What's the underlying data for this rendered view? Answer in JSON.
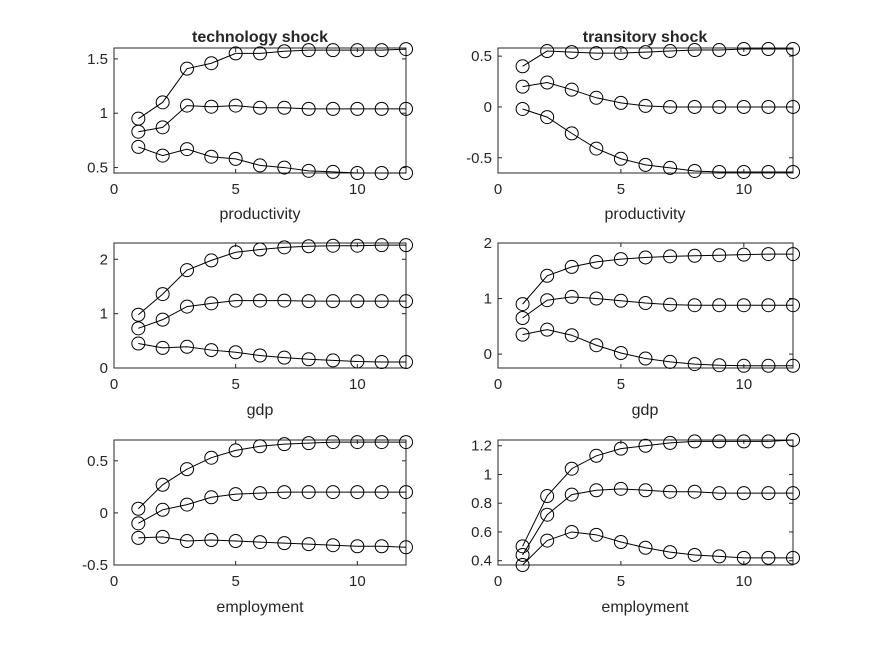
{
  "figure": {
    "background": "#ffffff",
    "line_color": "#000000",
    "axis_color": "#262626"
  },
  "chart_data": [
    {
      "type": "line",
      "panel": "row1-col1",
      "title": "technology shock",
      "xlabel": "productivity",
      "ylabel": "",
      "xlim": [
        0,
        12
      ],
      "ylim": [
        0.45,
        1.6
      ],
      "xticks": [
        0,
        5,
        10
      ],
      "yticks": [
        0.5,
        1,
        1.5
      ],
      "x": [
        1,
        2,
        3,
        4,
        5,
        6,
        7,
        8,
        9,
        10,
        11,
        12
      ],
      "series": [
        {
          "values": [
            0.95,
            1.1,
            1.41,
            1.46,
            1.55,
            1.55,
            1.57,
            1.58,
            1.58,
            1.58,
            1.58,
            1.59
          ],
          "marker": "circle"
        },
        {
          "values": [
            0.83,
            0.87,
            1.07,
            1.06,
            1.07,
            1.05,
            1.05,
            1.04,
            1.04,
            1.04,
            1.04,
            1.04
          ],
          "marker": "circle"
        },
        {
          "values": [
            0.69,
            0.61,
            0.67,
            0.6,
            0.58,
            0.52,
            0.5,
            0.47,
            0.46,
            0.45,
            0.45,
            0.45
          ],
          "marker": "circle"
        }
      ]
    },
    {
      "type": "line",
      "panel": "row1-col2",
      "title": "transitory shock",
      "xlabel": "productivity",
      "ylabel": "",
      "xlim": [
        0,
        12
      ],
      "ylim": [
        -0.65,
        0.58
      ],
      "xticks": [
        0,
        5,
        10
      ],
      "yticks": [
        -0.5,
        0,
        0.5
      ],
      "x": [
        1,
        2,
        3,
        4,
        5,
        6,
        7,
        8,
        9,
        10,
        11,
        12
      ],
      "series": [
        {
          "values": [
            0.4,
            0.55,
            0.54,
            0.53,
            0.53,
            0.54,
            0.55,
            0.56,
            0.56,
            0.57,
            0.57,
            0.57
          ],
          "marker": "circle"
        },
        {
          "values": [
            0.2,
            0.24,
            0.17,
            0.09,
            0.04,
            0.01,
            0.0,
            0.0,
            0.0,
            0.0,
            0.0,
            0.0
          ],
          "marker": "circle"
        },
        {
          "values": [
            -0.02,
            -0.1,
            -0.26,
            -0.41,
            -0.51,
            -0.57,
            -0.6,
            -0.63,
            -0.64,
            -0.64,
            -0.64,
            -0.64
          ],
          "marker": "circle"
        }
      ]
    },
    {
      "type": "line",
      "panel": "row2-col1",
      "title": "",
      "xlabel": "gdp",
      "ylabel": "",
      "xlim": [
        0,
        12
      ],
      "ylim": [
        0,
        2.3
      ],
      "xticks": [
        0,
        5,
        10
      ],
      "yticks": [
        0,
        1,
        2
      ],
      "x": [
        1,
        2,
        3,
        4,
        5,
        6,
        7,
        8,
        9,
        10,
        11,
        12
      ],
      "series": [
        {
          "values": [
            0.98,
            1.36,
            1.8,
            1.98,
            2.13,
            2.18,
            2.22,
            2.24,
            2.25,
            2.25,
            2.26,
            2.26
          ],
          "marker": "circle"
        },
        {
          "values": [
            0.73,
            0.89,
            1.13,
            1.19,
            1.24,
            1.24,
            1.24,
            1.23,
            1.23,
            1.23,
            1.23,
            1.23
          ],
          "marker": "circle"
        },
        {
          "values": [
            0.45,
            0.37,
            0.39,
            0.33,
            0.29,
            0.23,
            0.19,
            0.16,
            0.14,
            0.12,
            0.11,
            0.11
          ],
          "marker": "circle"
        }
      ]
    },
    {
      "type": "line",
      "panel": "row2-col2",
      "title": "",
      "xlabel": "gdp",
      "ylabel": "",
      "xlim": [
        0,
        12
      ],
      "ylim": [
        -0.25,
        2.0
      ],
      "xticks": [
        0,
        5,
        10
      ],
      "yticks": [
        0,
        1,
        2
      ],
      "x": [
        1,
        2,
        3,
        4,
        5,
        6,
        7,
        8,
        9,
        10,
        11,
        12
      ],
      "series": [
        {
          "values": [
            0.9,
            1.41,
            1.57,
            1.66,
            1.71,
            1.74,
            1.76,
            1.77,
            1.78,
            1.79,
            1.8,
            1.8
          ],
          "marker": "circle"
        },
        {
          "values": [
            0.65,
            0.97,
            1.03,
            1.0,
            0.96,
            0.92,
            0.89,
            0.88,
            0.88,
            0.88,
            0.88,
            0.88
          ],
          "marker": "circle"
        },
        {
          "values": [
            0.35,
            0.44,
            0.34,
            0.16,
            0.02,
            -0.08,
            -0.14,
            -0.18,
            -0.2,
            -0.21,
            -0.21,
            -0.21
          ],
          "marker": "circle"
        }
      ]
    },
    {
      "type": "line",
      "panel": "row3-col1",
      "title": "",
      "xlabel": "employment",
      "ylabel": "",
      "xlim": [
        0,
        12
      ],
      "ylim": [
        -0.5,
        0.7
      ],
      "xticks": [
        0,
        5,
        10
      ],
      "yticks": [
        -0.5,
        0,
        0.5
      ],
      "x": [
        1,
        2,
        3,
        4,
        5,
        6,
        7,
        8,
        9,
        10,
        11,
        12
      ],
      "series": [
        {
          "values": [
            0.04,
            0.27,
            0.42,
            0.53,
            0.6,
            0.64,
            0.66,
            0.67,
            0.68,
            0.68,
            0.68,
            0.68
          ],
          "marker": "circle"
        },
        {
          "values": [
            -0.1,
            0.03,
            0.08,
            0.15,
            0.18,
            0.19,
            0.2,
            0.2,
            0.2,
            0.2,
            0.2,
            0.2
          ],
          "marker": "circle"
        },
        {
          "values": [
            -0.24,
            -0.23,
            -0.27,
            -0.26,
            -0.27,
            -0.28,
            -0.29,
            -0.3,
            -0.31,
            -0.32,
            -0.32,
            -0.33
          ],
          "marker": "circle"
        }
      ]
    },
    {
      "type": "line",
      "panel": "row3-col2",
      "title": "",
      "xlabel": "employment",
      "ylabel": "",
      "xlim": [
        0,
        12
      ],
      "ylim": [
        0.37,
        1.24
      ],
      "xticks": [
        0,
        5,
        10
      ],
      "yticks": [
        0.4,
        0.6,
        0.8,
        1,
        1.2
      ],
      "x": [
        1,
        2,
        3,
        4,
        5,
        6,
        7,
        8,
        9,
        10,
        11,
        12
      ],
      "series": [
        {
          "values": [
            0.5,
            0.85,
            1.04,
            1.13,
            1.18,
            1.2,
            1.22,
            1.23,
            1.23,
            1.23,
            1.23,
            1.24
          ],
          "marker": "circle"
        },
        {
          "values": [
            0.44,
            0.72,
            0.86,
            0.89,
            0.9,
            0.89,
            0.88,
            0.88,
            0.87,
            0.87,
            0.87,
            0.87
          ],
          "marker": "circle"
        },
        {
          "values": [
            0.37,
            0.54,
            0.6,
            0.58,
            0.53,
            0.49,
            0.46,
            0.44,
            0.43,
            0.42,
            0.42,
            0.42
          ],
          "marker": "circle"
        }
      ]
    }
  ]
}
